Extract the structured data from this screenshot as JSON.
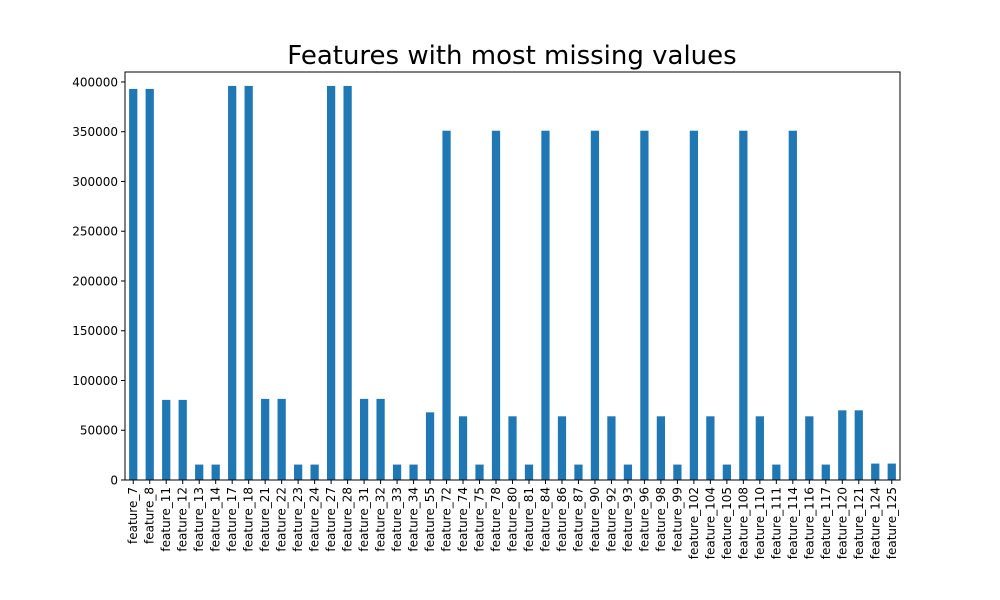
{
  "chart_data": {
    "type": "bar",
    "title": "Features with most missing values",
    "xlabel": "",
    "ylabel": "",
    "ylim": [
      0,
      410000
    ],
    "yticks": [
      0,
      50000,
      100000,
      150000,
      200000,
      250000,
      300000,
      350000,
      400000
    ],
    "ytick_labels": [
      "0",
      "50000",
      "100000",
      "150000",
      "200000",
      "250000",
      "300000",
      "350000",
      "400000"
    ],
    "grid": false,
    "legend": "none",
    "bar_color": "#1f77b4",
    "categories": [
      "feature_7",
      "feature_8",
      "feature_11",
      "feature_12",
      "feature_13",
      "feature_14",
      "feature_17",
      "feature_18",
      "feature_21",
      "feature_22",
      "feature_23",
      "feature_24",
      "feature_27",
      "feature_28",
      "feature_31",
      "feature_32",
      "feature_33",
      "feature_34",
      "feature_55",
      "feature_72",
      "feature_74",
      "feature_75",
      "feature_78",
      "feature_80",
      "feature_81",
      "feature_84",
      "feature_86",
      "feature_87",
      "feature_90",
      "feature_92",
      "feature_93",
      "feature_96",
      "feature_98",
      "feature_99",
      "feature_102",
      "feature_104",
      "feature_105",
      "feature_108",
      "feature_110",
      "feature_111",
      "feature_114",
      "feature_116",
      "feature_117",
      "feature_120",
      "feature_121",
      "feature_124",
      "feature_125"
    ],
    "values": [
      393000,
      393000,
      80500,
      80500,
      15500,
      15500,
      396000,
      396000,
      81500,
      81500,
      15500,
      15500,
      396000,
      396000,
      81500,
      81500,
      15500,
      15500,
      68000,
      351000,
      64000,
      15500,
      351000,
      64000,
      15500,
      351000,
      64000,
      15500,
      351000,
      64000,
      15500,
      351000,
      64000,
      15500,
      351000,
      64000,
      15500,
      351000,
      64000,
      15500,
      351000,
      64000,
      15500,
      70000,
      70000,
      16500,
      16500
    ]
  }
}
